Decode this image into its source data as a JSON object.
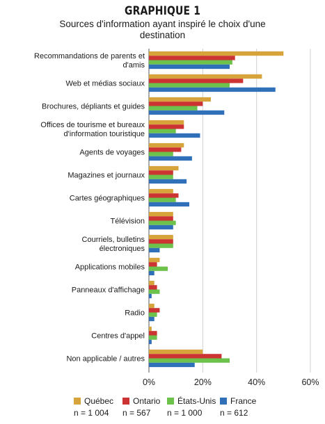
{
  "header": {
    "label": "GRAPHIQUE 1",
    "title": "Sources d'information ayant inspiré le choix d'une destination"
  },
  "chart_data": {
    "type": "bar",
    "orientation": "horizontal",
    "categories": [
      "Recommandations de parents et d'amis",
      "Web et médias sociaux",
      "Brochures, dépliants et guides",
      "Offices de tourisme et bureaux d'information touristique",
      "Agents de voyages",
      "Magazines et journaux",
      "Cartes géographiques",
      "Télévision",
      "Courriels, bulletins électroniques",
      "Applications mobiles",
      "Panneaux d'affichage",
      "Radio",
      "Centres d'appel",
      "Non applicable / autres"
    ],
    "series": [
      {
        "name": "Québec",
        "n": "n = 1 004",
        "color": "#d7a43c",
        "values": [
          50,
          42,
          23,
          13,
          13,
          11,
          9,
          9,
          9,
          4,
          2,
          2,
          1,
          20
        ]
      },
      {
        "name": "Ontario",
        "n": "n = 567",
        "color": "#cc3333",
        "values": [
          32,
          35,
          20,
          13,
          12,
          9,
          11,
          9,
          9,
          3,
          3,
          4,
          3,
          27
        ]
      },
      {
        "name": "États-Unis",
        "n": "n = 1 000",
        "color": "#6cc24a",
        "values": [
          31,
          30,
          18,
          10,
          9,
          9,
          10,
          10,
          9,
          7,
          4,
          3,
          3,
          30
        ]
      },
      {
        "name": "France",
        "n": "n = 612",
        "color": "#2f70b8",
        "values": [
          30,
          47,
          28,
          19,
          16,
          14,
          15,
          9,
          4,
          2,
          1,
          2,
          1,
          17
        ]
      }
    ],
    "xlim": [
      0,
      60
    ],
    "xticks": [
      "0%",
      "20%",
      "40%",
      "60%"
    ],
    "grid": true,
    "legend_position": "bottom"
  }
}
